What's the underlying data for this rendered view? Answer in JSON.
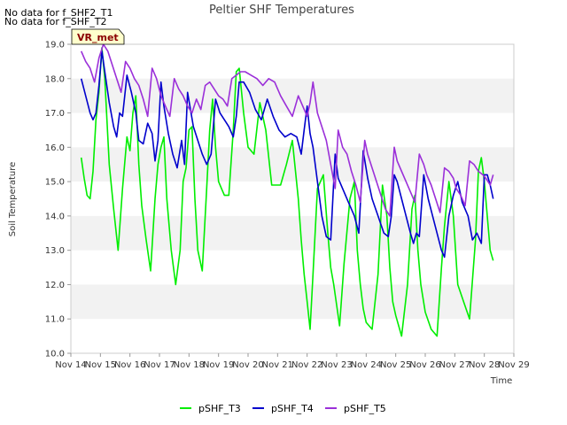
{
  "notes": [
    "No data for f_SHF2_T1",
    "No data for f_SHF_T2"
  ],
  "badge": "VR_met",
  "chart_data": {
    "type": "line",
    "title": "Peltier SHF Temperatures",
    "xlabel": "Time",
    "ylabel": "Soil Temperature",
    "ylim": [
      10.0,
      19.0
    ],
    "yticks": [
      "10.0",
      "11.0",
      "12.0",
      "13.0",
      "14.0",
      "15.0",
      "16.0",
      "17.0",
      "18.0",
      "19.0"
    ],
    "xlim": [
      14,
      29
    ],
    "xticks": [
      "Nov 14",
      "Nov 15",
      "Nov 16",
      "Nov 17",
      "Nov 18",
      "Nov 19",
      "Nov 20",
      "Nov 21",
      "Nov 22",
      "Nov 23",
      "Nov 24",
      "Nov 25",
      "Nov 26",
      "Nov 27",
      "Nov 28",
      "Nov 29"
    ],
    "grid": "horizontal bands",
    "legend": "bottom-center",
    "series": [
      {
        "name": "pSHF_T3",
        "color": "#00ee00",
        "x": [
          14.35,
          14.45,
          14.55,
          14.65,
          14.75,
          14.85,
          14.95,
          15.05,
          15.15,
          15.3,
          15.45,
          15.6,
          15.75,
          15.9,
          16.0,
          16.1,
          16.2,
          16.3,
          16.4,
          16.55,
          16.7,
          16.85,
          16.95,
          17.05,
          17.15,
          17.25,
          17.4,
          17.55,
          17.7,
          17.8,
          17.9,
          18.0,
          18.1,
          18.2,
          18.3,
          18.45,
          18.6,
          18.7,
          18.8,
          18.9,
          19.0,
          19.1,
          19.2,
          19.35,
          19.5,
          19.6,
          19.7,
          19.85,
          20.0,
          20.2,
          20.4,
          20.6,
          20.8,
          20.95,
          21.1,
          21.3,
          21.5,
          21.7,
          21.8,
          21.9,
          22.0,
          22.1,
          22.2,
          22.35,
          22.55,
          22.7,
          22.8,
          22.9,
          23.0,
          23.1,
          23.25,
          23.45,
          23.6,
          23.7,
          23.8,
          23.9,
          24.0,
          24.2,
          24.4,
          24.55,
          24.7,
          24.8,
          24.9,
          25.0,
          25.2,
          25.4,
          25.55,
          25.65,
          25.75,
          25.85,
          26.0,
          26.2,
          26.4,
          26.55,
          26.65,
          26.8,
          26.95,
          27.1,
          27.3,
          27.5,
          27.7,
          27.8,
          27.9,
          28.0,
          28.1,
          28.2,
          28.3
        ],
        "y": [
          15.7,
          15.1,
          14.6,
          14.5,
          15.3,
          16.8,
          17.6,
          18.9,
          18.0,
          15.5,
          14.2,
          13.0,
          14.8,
          16.3,
          15.9,
          17.0,
          17.5,
          15.5,
          14.3,
          13.3,
          12.4,
          14.5,
          15.5,
          16.0,
          16.3,
          14.5,
          13.0,
          12.0,
          13.0,
          15.0,
          15.4,
          16.5,
          16.6,
          14.5,
          13.0,
          12.4,
          14.8,
          16.5,
          17.4,
          16.0,
          15.0,
          14.8,
          14.6,
          14.6,
          16.5,
          18.2,
          18.3,
          17.0,
          16.0,
          15.8,
          17.3,
          16.5,
          14.9,
          14.9,
          14.9,
          15.5,
          16.2,
          14.5,
          13.3,
          12.3,
          11.5,
          10.7,
          12.3,
          14.8,
          15.2,
          13.5,
          12.5,
          12.0,
          11.4,
          10.8,
          12.6,
          14.5,
          15.0,
          13.0,
          12.0,
          11.3,
          10.9,
          10.7,
          12.3,
          14.9,
          14.0,
          12.5,
          11.5,
          11.1,
          10.5,
          12.0,
          14.2,
          14.6,
          13.0,
          12.0,
          11.2,
          10.7,
          10.5,
          12.5,
          13.7,
          15.0,
          14.0,
          12.0,
          11.5,
          11.0,
          13.3,
          15.3,
          15.7,
          15.0,
          14.0,
          13.0,
          12.7
        ]
      },
      {
        "name": "pSHF_T4",
        "color": "#0000cc",
        "x": [
          14.35,
          14.5,
          14.65,
          14.75,
          14.85,
          14.95,
          15.05,
          15.15,
          15.3,
          15.45,
          15.55,
          15.65,
          15.75,
          15.9,
          16.05,
          16.2,
          16.3,
          16.45,
          16.6,
          16.75,
          16.85,
          16.95,
          17.05,
          17.15,
          17.3,
          17.45,
          17.6,
          17.75,
          17.85,
          17.95,
          18.05,
          18.15,
          18.3,
          18.45,
          18.6,
          18.75,
          18.9,
          19.05,
          19.2,
          19.35,
          19.5,
          19.6,
          19.7,
          19.85,
          20.05,
          20.25,
          20.45,
          20.65,
          20.85,
          21.05,
          21.25,
          21.45,
          21.65,
          21.8,
          21.9,
          22.0,
          22.1,
          22.2,
          22.35,
          22.5,
          22.65,
          22.8,
          22.95,
          23.05,
          23.2,
          23.4,
          23.6,
          23.75,
          23.9,
          24.05,
          24.2,
          24.4,
          24.6,
          24.75,
          24.85,
          24.95,
          25.05,
          25.2,
          25.35,
          25.5,
          25.6,
          25.7,
          25.8,
          25.95,
          26.1,
          26.25,
          26.4,
          26.55,
          26.65,
          26.8,
          26.95,
          27.1,
          27.25,
          27.45,
          27.6,
          27.75,
          27.9,
          28.0,
          28.1,
          28.2,
          28.3
        ],
        "y": [
          18.0,
          17.5,
          17.0,
          16.8,
          17.0,
          17.8,
          18.8,
          18.2,
          17.3,
          16.6,
          16.3,
          17.0,
          16.9,
          18.1,
          17.6,
          17.0,
          16.2,
          16.1,
          16.7,
          16.4,
          15.6,
          16.2,
          17.9,
          17.2,
          16.4,
          15.8,
          15.4,
          16.2,
          15.5,
          17.6,
          17.1,
          16.6,
          16.2,
          15.8,
          15.5,
          15.8,
          17.4,
          17.0,
          16.8,
          16.6,
          16.3,
          16.9,
          17.9,
          17.9,
          17.6,
          17.1,
          16.8,
          17.4,
          16.9,
          16.5,
          16.3,
          16.4,
          16.3,
          15.8,
          16.5,
          17.2,
          16.4,
          16.0,
          15.0,
          14.0,
          13.4,
          13.3,
          15.8,
          15.1,
          14.8,
          14.4,
          14.0,
          13.5,
          15.9,
          15.1,
          14.5,
          14.0,
          13.5,
          13.4,
          14.0,
          15.2,
          15.0,
          14.5,
          14.0,
          13.5,
          13.2,
          13.5,
          13.4,
          15.2,
          14.5,
          14.0,
          13.5,
          13.0,
          12.8,
          14.0,
          14.6,
          15.0,
          14.4,
          14.0,
          13.3,
          13.5,
          13.2,
          15.2,
          15.2,
          14.9,
          14.5
        ]
      },
      {
        "name": "pSHF_T5",
        "color": "#9b30d9",
        "x": [
          14.35,
          14.5,
          14.65,
          14.8,
          14.95,
          15.1,
          15.25,
          15.4,
          15.55,
          15.7,
          15.85,
          16.0,
          16.15,
          16.3,
          16.45,
          16.6,
          16.75,
          16.9,
          17.05,
          17.2,
          17.35,
          17.5,
          17.65,
          17.8,
          17.95,
          18.1,
          18.25,
          18.4,
          18.55,
          18.7,
          18.85,
          19.0,
          19.15,
          19.3,
          19.45,
          19.6,
          19.75,
          19.9,
          20.1,
          20.3,
          20.5,
          20.7,
          20.9,
          21.1,
          21.3,
          21.5,
          21.7,
          21.85,
          22.0,
          22.1,
          22.2,
          22.35,
          22.5,
          22.65,
          22.8,
          22.95,
          23.05,
          23.2,
          23.35,
          23.5,
          23.65,
          23.8,
          23.95,
          24.05,
          24.2,
          24.35,
          24.5,
          24.65,
          24.8,
          24.95,
          25.05,
          25.2,
          25.35,
          25.5,
          25.65,
          25.8,
          25.95,
          26.05,
          26.2,
          26.35,
          26.5,
          26.65,
          26.8,
          26.95,
          27.05,
          27.2,
          27.35,
          27.5,
          27.65,
          27.8,
          27.95,
          28.05,
          28.2,
          28.3
        ],
        "y": [
          18.8,
          18.5,
          18.3,
          17.9,
          18.6,
          19.0,
          18.8,
          18.4,
          18.0,
          17.6,
          18.5,
          18.3,
          18.0,
          17.8,
          17.4,
          16.9,
          18.3,
          18.0,
          17.5,
          17.2,
          16.9,
          18.0,
          17.7,
          17.5,
          17.2,
          17.0,
          17.4,
          17.1,
          17.8,
          17.9,
          17.7,
          17.5,
          17.4,
          17.2,
          18.0,
          18.1,
          18.2,
          18.2,
          18.1,
          18.0,
          17.8,
          18.0,
          17.9,
          17.5,
          17.2,
          16.9,
          17.5,
          17.2,
          16.9,
          17.3,
          17.9,
          17.0,
          16.6,
          16.2,
          15.5,
          14.8,
          16.5,
          16.0,
          15.8,
          15.3,
          14.9,
          14.4,
          16.2,
          15.8,
          15.4,
          15.0,
          14.6,
          14.2,
          14.0,
          16.0,
          15.6,
          15.3,
          15.0,
          14.7,
          14.4,
          15.8,
          15.5,
          15.2,
          14.9,
          14.5,
          14.1,
          15.4,
          15.3,
          15.1,
          14.8,
          14.6,
          14.3,
          15.6,
          15.5,
          15.3,
          15.2,
          15.1,
          14.9,
          15.2
        ]
      }
    ]
  }
}
